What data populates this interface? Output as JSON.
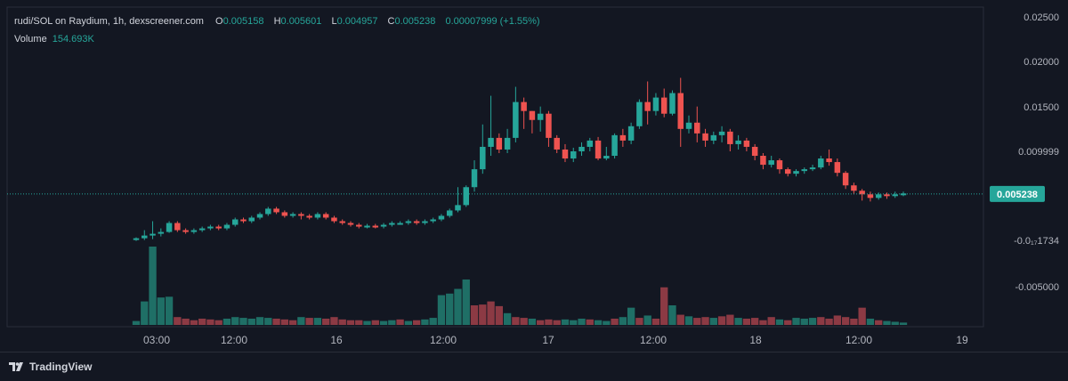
{
  "legend": {
    "title": "rudi/SOL on Raydium, 1h, dexscreener.com",
    "open_label": "O",
    "open": "0.005158",
    "high_label": "H",
    "high": "0.005601",
    "low_label": "L",
    "low": "0.004957",
    "close_label": "C",
    "close": "0.005238",
    "change": "0.00007999 (+1.55%)",
    "volume_label": "Volume",
    "volume": "154.693K"
  },
  "footer": {
    "brand": "TradingView"
  },
  "colors": {
    "up": "#26a69a",
    "down": "#ef5350",
    "up_volume": "#1f6f66",
    "down_volume": "#8c3a44",
    "background": "#131722",
    "grid": "#2a2e39"
  },
  "chart_data": {
    "type": "candlestick",
    "x_axis": {
      "ticks": [
        "03:00",
        "12:00",
        "16",
        "12:00",
        "17",
        "12:00",
        "18",
        "12:00",
        "19"
      ]
    },
    "y_axis": {
      "ticks": [
        "0.02500",
        "0.02000",
        "0.01500",
        "0.009999",
        "-0.0₁₇1734",
        "-0.005000"
      ],
      "range": [
        -0.0085,
        0.026
      ]
    },
    "last_price": "0.005238",
    "candles": [
      [
        0.0002,
        0.0003,
        0.0,
        0.0004
      ],
      [
        0.0003,
        0.0006,
        0.0001,
        0.0012
      ],
      [
        0.0006,
        0.0008,
        0.0002,
        0.0022
      ],
      [
        0.0008,
        0.001,
        0.0005,
        0.0014
      ],
      [
        0.001,
        0.002,
        0.0009,
        0.0022
      ],
      [
        0.002,
        0.0012,
        0.001,
        0.0022
      ],
      [
        0.0012,
        0.001,
        0.0008,
        0.0014
      ],
      [
        0.001,
        0.0012,
        0.0008,
        0.0014
      ],
      [
        0.0012,
        0.0014,
        0.001,
        0.0016
      ],
      [
        0.0014,
        0.0016,
        0.0012,
        0.0018
      ],
      [
        0.0016,
        0.0014,
        0.0012,
        0.0018
      ],
      [
        0.0014,
        0.0018,
        0.0012,
        0.002
      ],
      [
        0.0018,
        0.0024,
        0.0016,
        0.0026
      ],
      [
        0.0024,
        0.0022,
        0.002,
        0.0026
      ],
      [
        0.0022,
        0.0026,
        0.002,
        0.0028
      ],
      [
        0.0026,
        0.003,
        0.0024,
        0.0032
      ],
      [
        0.003,
        0.0036,
        0.0028,
        0.0038
      ],
      [
        0.0036,
        0.0032,
        0.003,
        0.0038
      ],
      [
        0.0032,
        0.0028,
        0.0026,
        0.0034
      ],
      [
        0.0028,
        0.003,
        0.0026,
        0.0032
      ],
      [
        0.003,
        0.0028,
        0.0024,
        0.0032
      ],
      [
        0.0028,
        0.0026,
        0.0024,
        0.003
      ],
      [
        0.0026,
        0.003,
        0.0024,
        0.0032
      ],
      [
        0.003,
        0.0026,
        0.0024,
        0.0032
      ],
      [
        0.0026,
        0.0022,
        0.002,
        0.0028
      ],
      [
        0.0022,
        0.002,
        0.0018,
        0.0024
      ],
      [
        0.002,
        0.0018,
        0.0016,
        0.0022
      ],
      [
        0.0018,
        0.0016,
        0.0014,
        0.002
      ],
      [
        0.0016,
        0.0017,
        0.0014,
        0.0019
      ],
      [
        0.0017,
        0.0016,
        0.0014,
        0.0019
      ],
      [
        0.0016,
        0.0018,
        0.0014,
        0.002
      ],
      [
        0.0018,
        0.002,
        0.0016,
        0.0022
      ],
      [
        0.002,
        0.002,
        0.0018,
        0.0022
      ],
      [
        0.002,
        0.0022,
        0.0018,
        0.0024
      ],
      [
        0.0022,
        0.002,
        0.0018,
        0.0024
      ],
      [
        0.002,
        0.0022,
        0.0018,
        0.0024
      ],
      [
        0.0022,
        0.0024,
        0.002,
        0.0026
      ],
      [
        0.0024,
        0.0028,
        0.0022,
        0.003
      ],
      [
        0.0028,
        0.0034,
        0.0026,
        0.0036
      ],
      [
        0.0034,
        0.004,
        0.0032,
        0.006
      ],
      [
        0.004,
        0.006,
        0.0038,
        0.0062
      ],
      [
        0.006,
        0.008,
        0.0055,
        0.009
      ],
      [
        0.008,
        0.0105,
        0.0075,
        0.013
      ],
      [
        0.0105,
        0.0115,
        0.0095,
        0.0162
      ],
      [
        0.0115,
        0.0102,
        0.0098,
        0.012
      ],
      [
        0.0102,
        0.0115,
        0.0098,
        0.0125
      ],
      [
        0.0115,
        0.0155,
        0.011,
        0.0172
      ],
      [
        0.0155,
        0.0145,
        0.0125,
        0.016
      ],
      [
        0.0145,
        0.0135,
        0.012,
        0.0145
      ],
      [
        0.0135,
        0.0142,
        0.0122,
        0.015
      ],
      [
        0.0142,
        0.0115,
        0.0105,
        0.0145
      ],
      [
        0.0115,
        0.0102,
        0.0098,
        0.0118
      ],
      [
        0.0102,
        0.0092,
        0.0088,
        0.0108
      ],
      [
        0.0092,
        0.01,
        0.0088,
        0.0104
      ],
      [
        0.01,
        0.0105,
        0.0095,
        0.011
      ],
      [
        0.0105,
        0.0112,
        0.01,
        0.0115
      ],
      [
        0.0112,
        0.0092,
        0.009,
        0.0116
      ],
      [
        0.0092,
        0.0095,
        0.009,
        0.0105
      ],
      [
        0.0095,
        0.0118,
        0.0092,
        0.012
      ],
      [
        0.0118,
        0.0112,
        0.0105,
        0.0125
      ],
      [
        0.0112,
        0.0128,
        0.0108,
        0.0132
      ],
      [
        0.0128,
        0.0155,
        0.0125,
        0.0158
      ],
      [
        0.0155,
        0.0145,
        0.013,
        0.0178
      ],
      [
        0.0145,
        0.016,
        0.014,
        0.0165
      ],
      [
        0.016,
        0.0142,
        0.0138,
        0.017
      ],
      [
        0.0142,
        0.0165,
        0.014,
        0.0168
      ],
      [
        0.0165,
        0.0125,
        0.0105,
        0.0182
      ],
      [
        0.0125,
        0.0132,
        0.012,
        0.014
      ],
      [
        0.0132,
        0.012,
        0.011,
        0.015
      ],
      [
        0.012,
        0.0112,
        0.0105,
        0.0125
      ],
      [
        0.0112,
        0.0118,
        0.0108,
        0.0122
      ],
      [
        0.0118,
        0.0122,
        0.011,
        0.0128
      ],
      [
        0.0122,
        0.0108,
        0.01,
        0.0125
      ],
      [
        0.0108,
        0.0112,
        0.0102,
        0.0118
      ],
      [
        0.0112,
        0.0105,
        0.01,
        0.0115
      ],
      [
        0.0105,
        0.0095,
        0.009,
        0.0108
      ],
      [
        0.0095,
        0.0085,
        0.008,
        0.0098
      ],
      [
        0.0085,
        0.009,
        0.0082,
        0.0095
      ],
      [
        0.009,
        0.008,
        0.0075,
        0.0092
      ],
      [
        0.008,
        0.0075,
        0.0072,
        0.0082
      ],
      [
        0.0075,
        0.0078,
        0.0072,
        0.008
      ],
      [
        0.0078,
        0.008,
        0.0075,
        0.0082
      ],
      [
        0.008,
        0.0082,
        0.0078,
        0.0085
      ],
      [
        0.0082,
        0.0092,
        0.008,
        0.0095
      ],
      [
        0.0092,
        0.0088,
        0.0084,
        0.0102
      ],
      [
        0.0088,
        0.0076,
        0.0072,
        0.0092
      ],
      [
        0.0076,
        0.0062,
        0.0058,
        0.0078
      ],
      [
        0.0062,
        0.0056,
        0.0052,
        0.0065
      ],
      [
        0.0056,
        0.0052,
        0.0045,
        0.0058
      ],
      [
        0.0052,
        0.0048,
        0.0044,
        0.0055
      ],
      [
        0.0048,
        0.0052,
        0.0046,
        0.0054
      ],
      [
        0.0052,
        0.005,
        0.0047,
        0.0054
      ],
      [
        0.005,
        0.0052,
        0.0048,
        0.0055
      ],
      [
        0.0052,
        0.0053,
        0.005,
        0.0055
      ]
    ],
    "volume_bars": [
      0.05,
      0.3,
      1.0,
      0.35,
      0.36,
      0.1,
      0.08,
      0.06,
      0.08,
      0.07,
      0.06,
      0.08,
      0.1,
      0.09,
      0.08,
      0.1,
      0.09,
      0.08,
      0.07,
      0.06,
      0.1,
      0.09,
      0.09,
      0.08,
      0.1,
      0.07,
      0.06,
      0.06,
      0.05,
      0.06,
      0.05,
      0.06,
      0.07,
      0.05,
      0.06,
      0.07,
      0.09,
      0.38,
      0.4,
      0.46,
      0.58,
      0.25,
      0.26,
      0.3,
      0.24,
      0.15,
      0.1,
      0.09,
      0.08,
      0.06,
      0.07,
      0.06,
      0.07,
      0.06,
      0.08,
      0.07,
      0.06,
      0.05,
      0.08,
      0.1,
      0.22,
      0.09,
      0.12,
      0.08,
      0.48,
      0.25,
      0.13,
      0.11,
      0.09,
      0.1,
      0.09,
      0.11,
      0.13,
      0.09,
      0.08,
      0.09,
      0.06,
      0.1,
      0.07,
      0.06,
      0.09,
      0.08,
      0.09,
      0.1,
      0.08,
      0.12,
      0.1,
      0.08,
      0.22,
      0.08,
      0.06,
      0.05,
      0.04,
      0.03
    ],
    "volume_up": [
      true,
      true,
      true,
      true,
      true,
      false,
      false,
      false,
      false,
      false,
      false,
      true,
      true,
      true,
      true,
      true,
      true,
      false,
      false,
      false,
      true,
      false,
      true,
      false,
      false,
      false,
      false,
      false,
      true,
      false,
      true,
      true,
      false,
      true,
      false,
      true,
      true,
      true,
      true,
      true,
      true,
      false,
      false,
      false,
      false,
      true,
      false,
      false,
      true,
      false,
      false,
      false,
      true,
      true,
      true,
      false,
      true,
      true,
      false,
      true,
      true,
      false,
      true,
      false,
      false,
      true,
      false,
      true,
      false,
      false,
      true,
      false,
      false,
      true,
      false,
      false,
      false,
      false,
      true,
      false,
      true,
      true,
      true,
      false,
      false,
      false,
      false,
      false,
      false,
      true,
      false,
      true,
      true,
      true
    ]
  }
}
